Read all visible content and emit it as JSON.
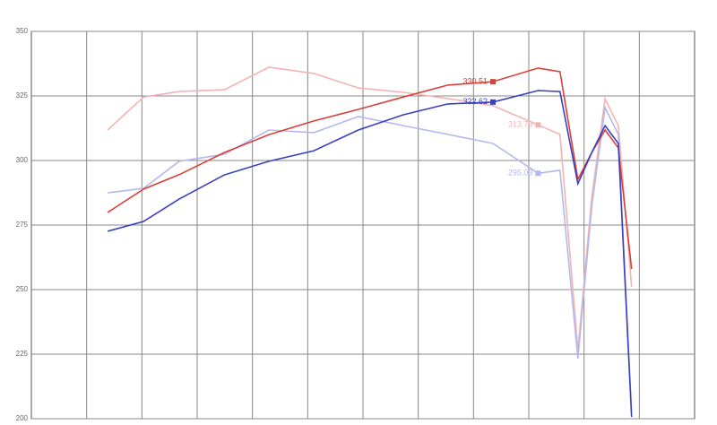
{
  "chart_data": {
    "type": "line",
    "x": [
      11.5,
      16.9,
      22.3,
      29.1,
      35.8,
      42.6,
      49.3,
      56.1,
      62.8,
      69.6,
      76.4,
      79.7,
      82.4,
      84.5,
      86.5,
      88.5,
      90.5
    ],
    "xlim": [
      0,
      100
    ],
    "ylim": [
      200,
      350
    ],
    "yticks": [
      200,
      225,
      250,
      275,
      300,
      325,
      350
    ],
    "grid": true,
    "series": [
      {
        "color": "#f3b3b3",
        "values": [
          311.8,
          324.6,
          326.7,
          327.4,
          336.1,
          333.7,
          328.1,
          326.4,
          324.0,
          321.2,
          313.79,
          310.1,
          226.7,
          285.8,
          323.9,
          313.5,
          251.1
        ],
        "value_labels": [
          null,
          null,
          null,
          null,
          null,
          null,
          null,
          null,
          null,
          null,
          "313.79",
          null,
          null,
          null,
          null,
          null,
          null
        ]
      },
      {
        "color": "#b3b8ee",
        "values": [
          287.5,
          289.2,
          299.7,
          302.4,
          311.8,
          310.8,
          317.0,
          313.5,
          310.1,
          306.6,
          295.03,
          296.2,
          223.3,
          282.3,
          320.5,
          310.1,
          202.4
        ],
        "value_labels": [
          null,
          null,
          null,
          null,
          null,
          null,
          null,
          null,
          null,
          null,
          "295.03",
          null,
          null,
          null,
          null,
          null,
          null
        ]
      },
      {
        "color": "#d9403a",
        "values": [
          279.9,
          288.9,
          294.5,
          303.1,
          310.0,
          315.3,
          319.8,
          324.6,
          329.2,
          330.51,
          335.8,
          334.4,
          292.7,
          303.1,
          311.8,
          304.9,
          258.0
        ],
        "value_labels": [
          null,
          null,
          null,
          null,
          null,
          null,
          null,
          null,
          null,
          "330.51",
          null,
          null,
          null,
          null,
          null,
          null,
          null
        ]
      },
      {
        "color": "#3a3fc0",
        "values": [
          272.6,
          276.4,
          285.1,
          294.4,
          299.7,
          303.8,
          311.8,
          317.7,
          321.9,
          322.62,
          327.1,
          326.7,
          291.0,
          303.1,
          313.5,
          306.6,
          200.7
        ],
        "value_labels": [
          null,
          null,
          null,
          null,
          null,
          null,
          null,
          null,
          null,
          "322.62",
          null,
          null,
          null,
          null,
          null,
          null,
          null
        ]
      }
    ]
  }
}
